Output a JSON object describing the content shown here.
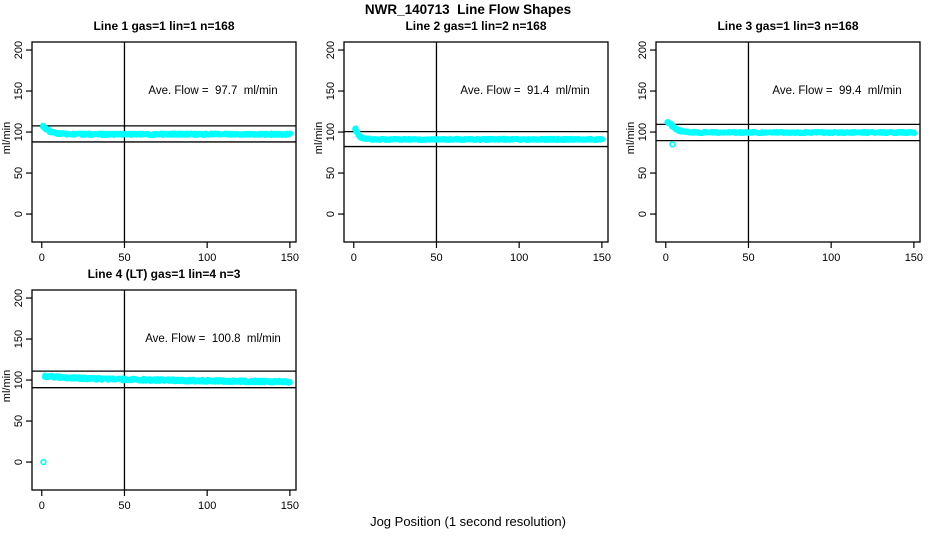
{
  "figure": {
    "title": "NWR_140713  Line Flow Shapes",
    "xlabel": "Jog Position (1 second resolution)"
  },
  "chart_data": {
    "type": "scatter",
    "title": "NWR_140713  Line Flow Shapes",
    "xlabel": "Jog Position (1 second resolution)",
    "ylabel": "ml/min",
    "marker": "open-circle",
    "marker_color": "#00FFFF",
    "axis_color": "#000000",
    "xticks": [
      0,
      50,
      100,
      150
    ],
    "yticks": [
      0,
      50,
      100,
      150,
      200
    ],
    "xlim": [
      -5.9,
      153.7
    ],
    "ylim": [
      -34.1,
      209.8
    ],
    "vline_x": 50,
    "legend": "none",
    "grid": "off",
    "panels": [
      {
        "title": "Line 1 gas=1 lin=1 n=168",
        "annotation": "Ave. Flow =  97.7  ml/min",
        "ave_flow": 97.7,
        "n_runs": 168,
        "limit_lines": [
          107.5,
          87.9
        ],
        "profile_x": [
          1,
          2,
          3,
          4,
          5,
          6,
          8,
          10,
          15,
          20,
          30,
          50,
          75,
          100,
          125,
          150
        ],
        "profile_y": [
          107,
          105.5,
          103.5,
          101.8,
          100.6,
          99.8,
          98.7,
          98.1,
          97.6,
          97.4,
          97.3,
          97.3,
          97.3,
          97.4,
          97.3,
          97.3
        ],
        "noise": 1.3,
        "x_start": 1,
        "x_end": 150,
        "outliers": []
      },
      {
        "title": "Line 2 gas=1 lin=2 n=168",
        "annotation": "Ave. Flow =  91.4  ml/min",
        "ave_flow": 91.4,
        "n_runs": 168,
        "limit_lines": [
          100.5,
          82.3
        ],
        "profile_x": [
          1,
          2,
          3,
          4,
          5,
          6,
          8,
          10,
          15,
          20,
          30,
          50,
          75,
          100,
          125,
          150
        ],
        "profile_y": [
          104,
          99.5,
          96,
          94,
          92.8,
          92.2,
          91.6,
          91.3,
          91.1,
          91,
          91,
          91,
          91,
          91,
          91,
          91
        ],
        "noise": 1.1,
        "x_start": 1,
        "x_end": 150,
        "outliers": []
      },
      {
        "title": "Line 3 gas=1 lin=3 n=168",
        "annotation": "Ave. Flow =  99.4  ml/min",
        "ave_flow": 99.4,
        "n_runs": 168,
        "limit_lines": [
          109.3,
          89.5
        ],
        "profile_x": [
          1,
          2,
          3,
          4,
          5,
          6,
          8,
          10,
          15,
          20,
          30,
          50,
          75,
          100,
          125,
          150
        ],
        "profile_y": [
          111.5,
          111,
          109.5,
          107.5,
          105.5,
          103.8,
          101.8,
          100.7,
          99.8,
          99.5,
          99.4,
          99.4,
          99.4,
          99.4,
          99.4,
          99.3
        ],
        "noise": 1.1,
        "x_start": 1,
        "x_end": 150,
        "outliers": [
          [
            4,
            85
          ]
        ]
      },
      {
        "title": "Line 4 (LT) gas=1 lin=4 n=3",
        "annotation": "Ave. Flow =  100.8  ml/min",
        "ave_flow": 100.8,
        "n_runs": 3,
        "limit_lines": [
          110.9,
          90.7
        ],
        "profile_x": [
          1,
          2,
          3,
          4,
          5,
          6,
          8,
          10,
          15,
          20,
          30,
          50,
          75,
          100,
          125,
          150
        ],
        "profile_y": [
          104.6,
          104.5,
          104.4,
          104.3,
          104.2,
          104.1,
          103.8,
          103.6,
          103.1,
          102.6,
          101.8,
          100.8,
          99.8,
          99,
          98.4,
          97.9
        ],
        "noise": 1.6,
        "x_start": 2,
        "x_end": 150,
        "outliers": [
          [
            1,
            0
          ]
        ]
      }
    ]
  }
}
